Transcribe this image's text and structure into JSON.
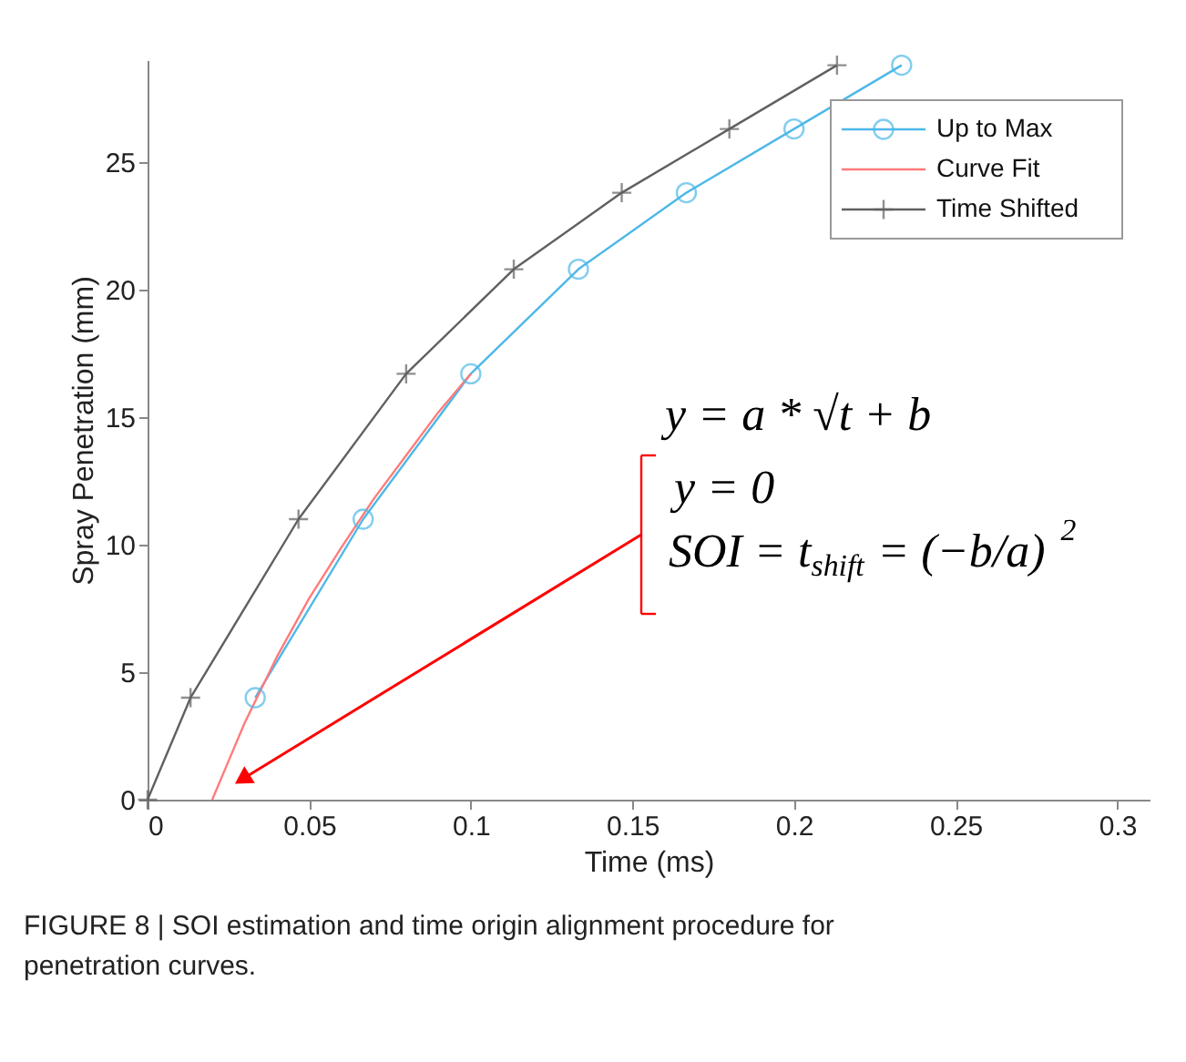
{
  "chart_data": {
    "type": "line",
    "xlabel": "Time (ms)",
    "ylabel": "Spray Penetration (mm)",
    "xlim": [
      0,
      0.31
    ],
    "ylim": [
      0,
      29
    ],
    "xticks": [
      0,
      0.05,
      0.1,
      0.15,
      0.2,
      0.25,
      0.3
    ],
    "yticks": [
      0,
      5,
      10,
      15,
      20,
      25
    ],
    "series": [
      {
        "name": "Up to Max",
        "color": "#4db8e8",
        "marker": "circle",
        "x": [
          0.0333,
          0.0667,
          0.1,
          0.1333,
          0.1667,
          0.2,
          0.2333
        ],
        "values": [
          4,
          11,
          16.7,
          20.8,
          23.8,
          26.3,
          28.8
        ]
      },
      {
        "name": "Curve Fit",
        "color": "#ff7b7b",
        "marker": "none",
        "x": [
          0.02,
          0.03,
          0.04,
          0.05,
          0.06,
          0.07,
          0.08,
          0.09,
          0.1
        ],
        "values": [
          0,
          3.0,
          5.6,
          7.9,
          9.9,
          11.8,
          13.5,
          15.2,
          16.7
        ]
      },
      {
        "name": "Time Shifted",
        "color": "#606060",
        "marker": "cross",
        "x": [
          0,
          0.0133,
          0.0467,
          0.08,
          0.1133,
          0.1467,
          0.18,
          0.2133
        ],
        "values": [
          0,
          4,
          11,
          16.7,
          20.8,
          23.8,
          26.3,
          28.8
        ]
      }
    ],
    "annotations": [
      "y = a * √t + b",
      "y = 0",
      "SOI = t$_{shift}$ = (−b/a)$^{2}$",
      "FIGURE 8 | SOI estimation and time origin alignment procedure for penetration curves."
    ],
    "grid": false,
    "legend": "top right",
    "line_style": "solid"
  }
}
